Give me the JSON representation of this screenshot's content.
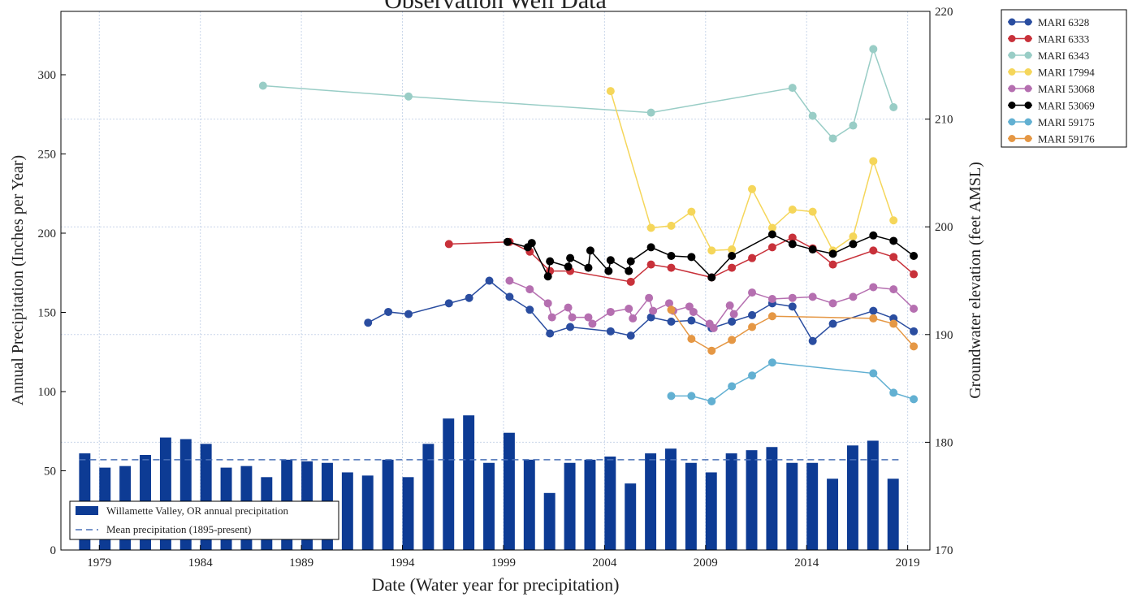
{
  "chart_data": {
    "type": "combo",
    "title": "Observation Well Data",
    "x_label": "Date (Water year for precipitation)",
    "y_label": "Annual Precipitation (Inches per Year)",
    "y2_label": "Groundwater elevation (feet AMSL)",
    "xlim": [
      1977.1,
      2020.1
    ],
    "xticks": [
      1979,
      1984,
      1989,
      1994,
      1999,
      2004,
      2009,
      2014,
      2019
    ],
    "ylim": [
      0,
      340
    ],
    "yticks": [
      0,
      50,
      100,
      150,
      200,
      250,
      300
    ],
    "y2lim": [
      170,
      220
    ],
    "y2ticks": [
      170,
      180,
      190,
      200,
      210,
      220
    ],
    "grid": true,
    "bars": {
      "name": "Willamette Valley, OR annual precipitation",
      "color": "#0d3b94",
      "x": [
        1978,
        1979,
        1980,
        1981,
        1982,
        1983,
        1984,
        1985,
        1986,
        1987,
        1988,
        1989,
        1990,
        1991,
        1992,
        1993,
        1994,
        1995,
        1996,
        1997,
        1998,
        1999,
        2000,
        2001,
        2002,
        2003,
        2004,
        2005,
        2006,
        2007,
        2008,
        2009,
        2010,
        2011,
        2012,
        2013,
        2014,
        2015,
        2016,
        2017,
        2018
      ],
      "values": [
        61,
        52,
        53,
        60,
        71,
        70,
        67,
        52,
        53,
        46,
        57,
        56,
        55,
        49,
        47,
        57,
        46,
        67,
        83,
        85,
        55,
        74,
        57,
        36,
        55,
        57,
        59,
        42,
        61,
        64,
        55,
        49,
        61,
        63,
        65,
        55,
        55,
        45,
        66,
        69,
        45
      ]
    },
    "mean": {
      "name": "Mean precipitation (1895-present)",
      "color": "#4a70b8",
      "value": 57
    },
    "series": [
      {
        "name": "MARI 6328",
        "color": "#2a4da0",
        "axis": "y2",
        "x": [
          1992.3,
          1993.3,
          1994.3,
          1996.3,
          1997.3,
          1998.3,
          1999.3,
          2000.3,
          2001.3,
          2002.3,
          2004.3,
          2005.3,
          2006.3,
          2007.3,
          2008.3,
          2009.3,
          2010.3,
          2011.3,
          2012.3,
          2013.3,
          2014.3,
          2015.3,
          2017.3,
          2018.3,
          2019.3
        ],
        "values": [
          191.1,
          192.1,
          191.9,
          192.9,
          193.4,
          195.0,
          193.5,
          192.3,
          190.1,
          190.7,
          190.3,
          189.9,
          191.6,
          191.2,
          191.3,
          190.6,
          191.2,
          191.8,
          192.9,
          192.6,
          189.4,
          191.0,
          192.2,
          191.5,
          190.3
        ]
      },
      {
        "name": "MARI 6333",
        "color": "#c8313a",
        "axis": "y2",
        "x": [
          1996.3,
          1999.3,
          2000.3,
          2001.3,
          2002.3,
          2005.3,
          2006.3,
          2007.3,
          2009.3,
          2010.3,
          2011.3,
          2012.3,
          2013.3,
          2014.3,
          2015.3,
          2017.3,
          2018.3,
          2019.3
        ],
        "values": [
          198.4,
          198.6,
          197.7,
          195.9,
          195.9,
          194.9,
          196.5,
          196.2,
          195.3,
          196.2,
          197.1,
          198.1,
          199.0,
          198.0,
          196.5,
          197.8,
          197.2,
          195.6
        ]
      },
      {
        "name": "MARI 6343",
        "color": "#99cdc6",
        "axis": "y2",
        "x": [
          1987.1,
          1994.3,
          2006.3,
          2013.3,
          2014.3,
          2015.3,
          2016.3,
          2017.3,
          2018.3
        ],
        "values": [
          213.1,
          212.1,
          210.6,
          212.9,
          210.3,
          208.2,
          209.4,
          216.5,
          211.1
        ]
      },
      {
        "name": "MARI 17994",
        "color": "#f5d65a",
        "axis": "y2",
        "x": [
          2004.3,
          2006.3,
          2007.3,
          2008.3,
          2009.3,
          2010.3,
          2011.3,
          2012.3,
          2013.3,
          2014.3,
          2015.3,
          2016.3,
          2017.3,
          2018.3
        ],
        "values": [
          212.6,
          199.9,
          200.1,
          201.4,
          197.8,
          197.9,
          203.5,
          199.9,
          201.6,
          201.4,
          197.8,
          199.1,
          206.1,
          200.6
        ]
      },
      {
        "name": "MARI 53068",
        "color": "#b56fb0",
        "axis": "y2",
        "x": [
          1999.3,
          2000.3,
          2001.2,
          2001.4,
          2002.2,
          2002.4,
          2003.2,
          2003.4,
          2004.3,
          2005.2,
          2005.4,
          2006.2,
          2006.4,
          2007.2,
          2007.4,
          2008.2,
          2008.4,
          2009.2,
          2009.4,
          2010.2,
          2010.4,
          2011.3,
          2012.3,
          2013.3,
          2014.3,
          2015.3,
          2016.3,
          2017.3,
          2018.3,
          2019.3
        ],
        "values": [
          195.0,
          194.2,
          192.9,
          191.6,
          192.5,
          191.6,
          191.6,
          191.0,
          192.1,
          192.4,
          191.5,
          193.4,
          192.2,
          192.9,
          192.2,
          192.6,
          192.1,
          191.0,
          190.6,
          192.7,
          191.9,
          193.9,
          193.3,
          193.4,
          193.5,
          192.9,
          193.5,
          194.4,
          194.2,
          192.4
        ]
      },
      {
        "name": "MARI 53069",
        "color": "#000000",
        "axis": "y2",
        "x": [
          1999.2,
          2000.2,
          2000.4,
          2001.2,
          2001.3,
          2002.2,
          2002.3,
          2003.2,
          2003.3,
          2004.2,
          2004.3,
          2005.2,
          2005.3,
          2006.3,
          2007.3,
          2008.3,
          2009.3,
          2010.3,
          2012.3,
          2013.3,
          2014.3,
          2015.3,
          2016.3,
          2017.3,
          2018.3,
          2019.3
        ],
        "values": [
          198.6,
          198.1,
          198.5,
          195.4,
          196.8,
          196.3,
          197.1,
          196.2,
          197.8,
          195.9,
          196.9,
          195.9,
          196.8,
          198.1,
          197.3,
          197.2,
          195.3,
          197.3,
          199.3,
          198.4,
          197.9,
          197.5,
          198.4,
          199.2,
          198.7,
          197.3
        ]
      },
      {
        "name": "MARI 59175",
        "color": "#62b0d2",
        "axis": "y2",
        "x": [
          2007.3,
          2008.3,
          2009.3,
          2010.3,
          2011.3,
          2012.3,
          2017.3,
          2018.3,
          2019.3
        ],
        "values": [
          184.3,
          184.3,
          183.8,
          185.2,
          186.2,
          187.4,
          186.4,
          184.6,
          184.0
        ]
      },
      {
        "name": "MARI 59176",
        "color": "#e59744",
        "axis": "y2",
        "x": [
          2007.3,
          2008.3,
          2009.3,
          2010.3,
          2011.3,
          2012.3,
          2017.3,
          2018.3,
          2019.3
        ],
        "values": [
          192.3,
          189.6,
          188.5,
          189.5,
          190.7,
          191.7,
          191.5,
          191.0,
          188.9
        ]
      }
    ]
  }
}
